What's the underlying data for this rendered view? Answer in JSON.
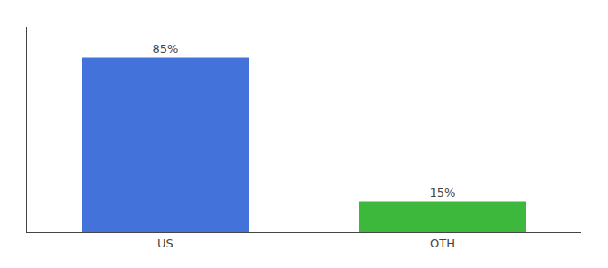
{
  "chart_data": {
    "type": "bar",
    "categories": [
      "US",
      "OTH"
    ],
    "values": [
      85,
      15
    ],
    "value_labels": [
      "85%",
      "15%"
    ],
    "colors": [
      "#4472db",
      "#3db83d"
    ],
    "ylim": [
      0,
      100
    ],
    "data_labels": true,
    "tick_labels": "x",
    "grid": false
  }
}
